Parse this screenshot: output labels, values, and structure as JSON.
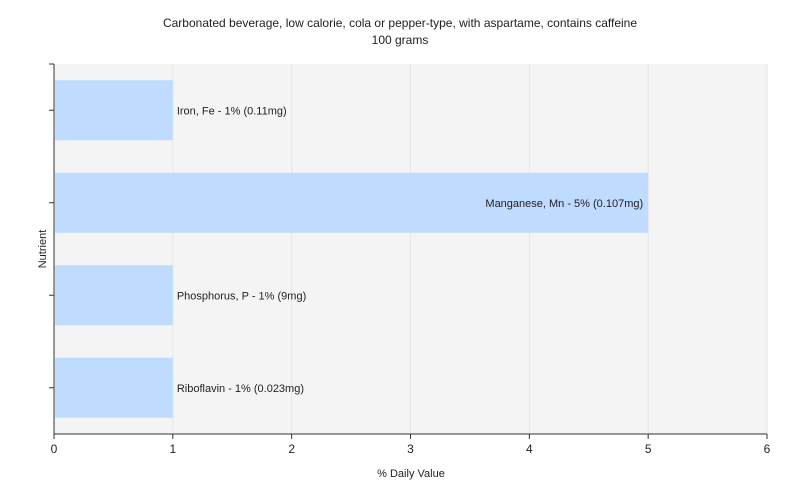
{
  "chart_data": {
    "type": "bar",
    "orientation": "horizontal",
    "title": "Carbonated beverage, low calorie, cola or pepper-type, with aspartame, contains caffeine",
    "subtitle": "100 grams",
    "xlabel": "% Daily Value",
    "ylabel": "Nutrient",
    "xlim": [
      0,
      6
    ],
    "xticks": [
      0,
      1,
      2,
      3,
      4,
      5,
      6
    ],
    "grid": true,
    "legend": "none",
    "categories": [
      "Iron, Fe",
      "Manganese, Mn",
      "Phosphorus, P",
      "Riboflavin"
    ],
    "values": [
      1,
      5,
      1,
      1
    ],
    "data_labels": [
      "Iron, Fe - 1% (0.11mg)",
      "Manganese, Mn - 5% (0.107mg)",
      "Phosphorus, P - 1% (9mg)",
      "Riboflavin - 1% (0.023mg)"
    ],
    "bar_color": "#bfdbff",
    "plot_background": "#f4f4f4",
    "grid_color": "#e6e6e6"
  }
}
